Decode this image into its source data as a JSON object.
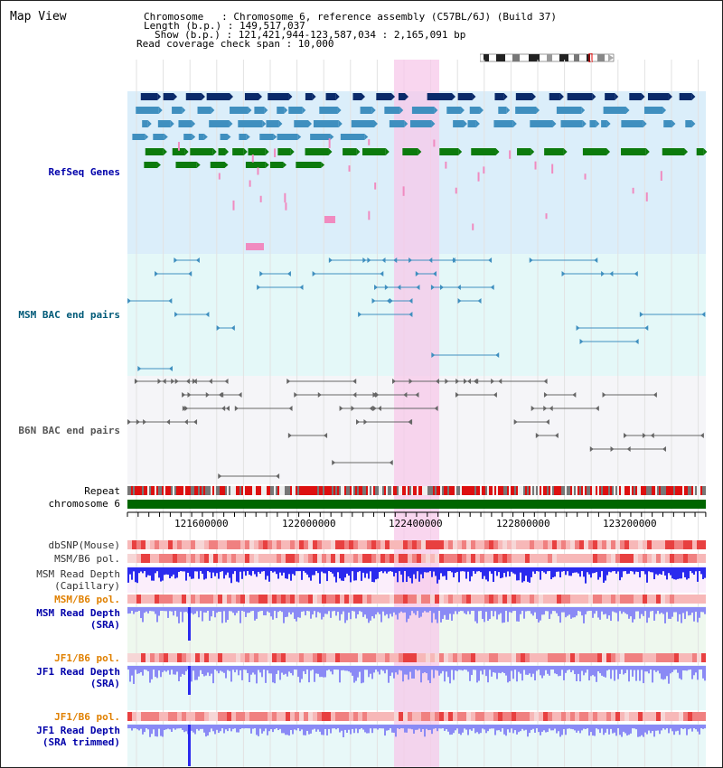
{
  "header": {
    "title": "Map View",
    "info_lines": [
      "Chromosome   : Chromosome 6, reference assembly (C57BL/6J) (Build 37)",
      "Length (b.p.) : 149,517,037",
      "Show (b.p.) : 121,421,944-123,587,034 : 2,165,091 bp",
      "Read coverage check span : 10,000"
    ]
  },
  "tracks": {
    "refseq": "RefSeq Genes",
    "msm_bac": "MSM BAC end pairs",
    "b6n_bac": "B6N BAC end pairs",
    "repeat": "Repeat",
    "chromosome": "chromosome 6",
    "dbsnp": "dbSNP(Mouse)",
    "msm_b6_pol_1": "MSM/B6 pol.",
    "msm_depth_cap_1": "MSM Read Depth",
    "msm_depth_cap_2": "(Capillary)",
    "msm_b6_pol_2": "MSM/B6 pol.",
    "msm_depth_sra_1": "MSM Read Depth",
    "msm_depth_sra_2": "(SRA)",
    "jf1_b6_pol_1": "JF1/B6 pol.",
    "jf1_depth_sra_1": "JF1 Read Depth",
    "jf1_depth_sra_2": "(SRA)",
    "jf1_b6_pol_2": "JF1/B6 pol.",
    "jf1_depth_trim_1": "JF1 Read Depth",
    "jf1_depth_trim_2": "(SRA trimmed)"
  },
  "ruler": {
    "ticks": [
      "121600000",
      "122000000",
      "122400000",
      "122800000",
      "123200000"
    ]
  },
  "colors": {
    "refseq_bg": "#dbeefa",
    "msm_bac_bg": "#e4f8f8",
    "b6n_bac_bg": "#f5f5f8",
    "highlight": "#f7c8ea",
    "chromosome_bar": "#006600",
    "label_blue": "#0000aa",
    "label_teal": "#005a78",
    "label_orange": "#e08000",
    "gene_dark": "#0a2a6a",
    "gene_mid": "#3f8fbf",
    "gene_green": "#0c7a0c",
    "gene_pink": "#f08bc0",
    "depth_blue": "#2a2aee",
    "depth_light": "#8a8af5"
  }
}
